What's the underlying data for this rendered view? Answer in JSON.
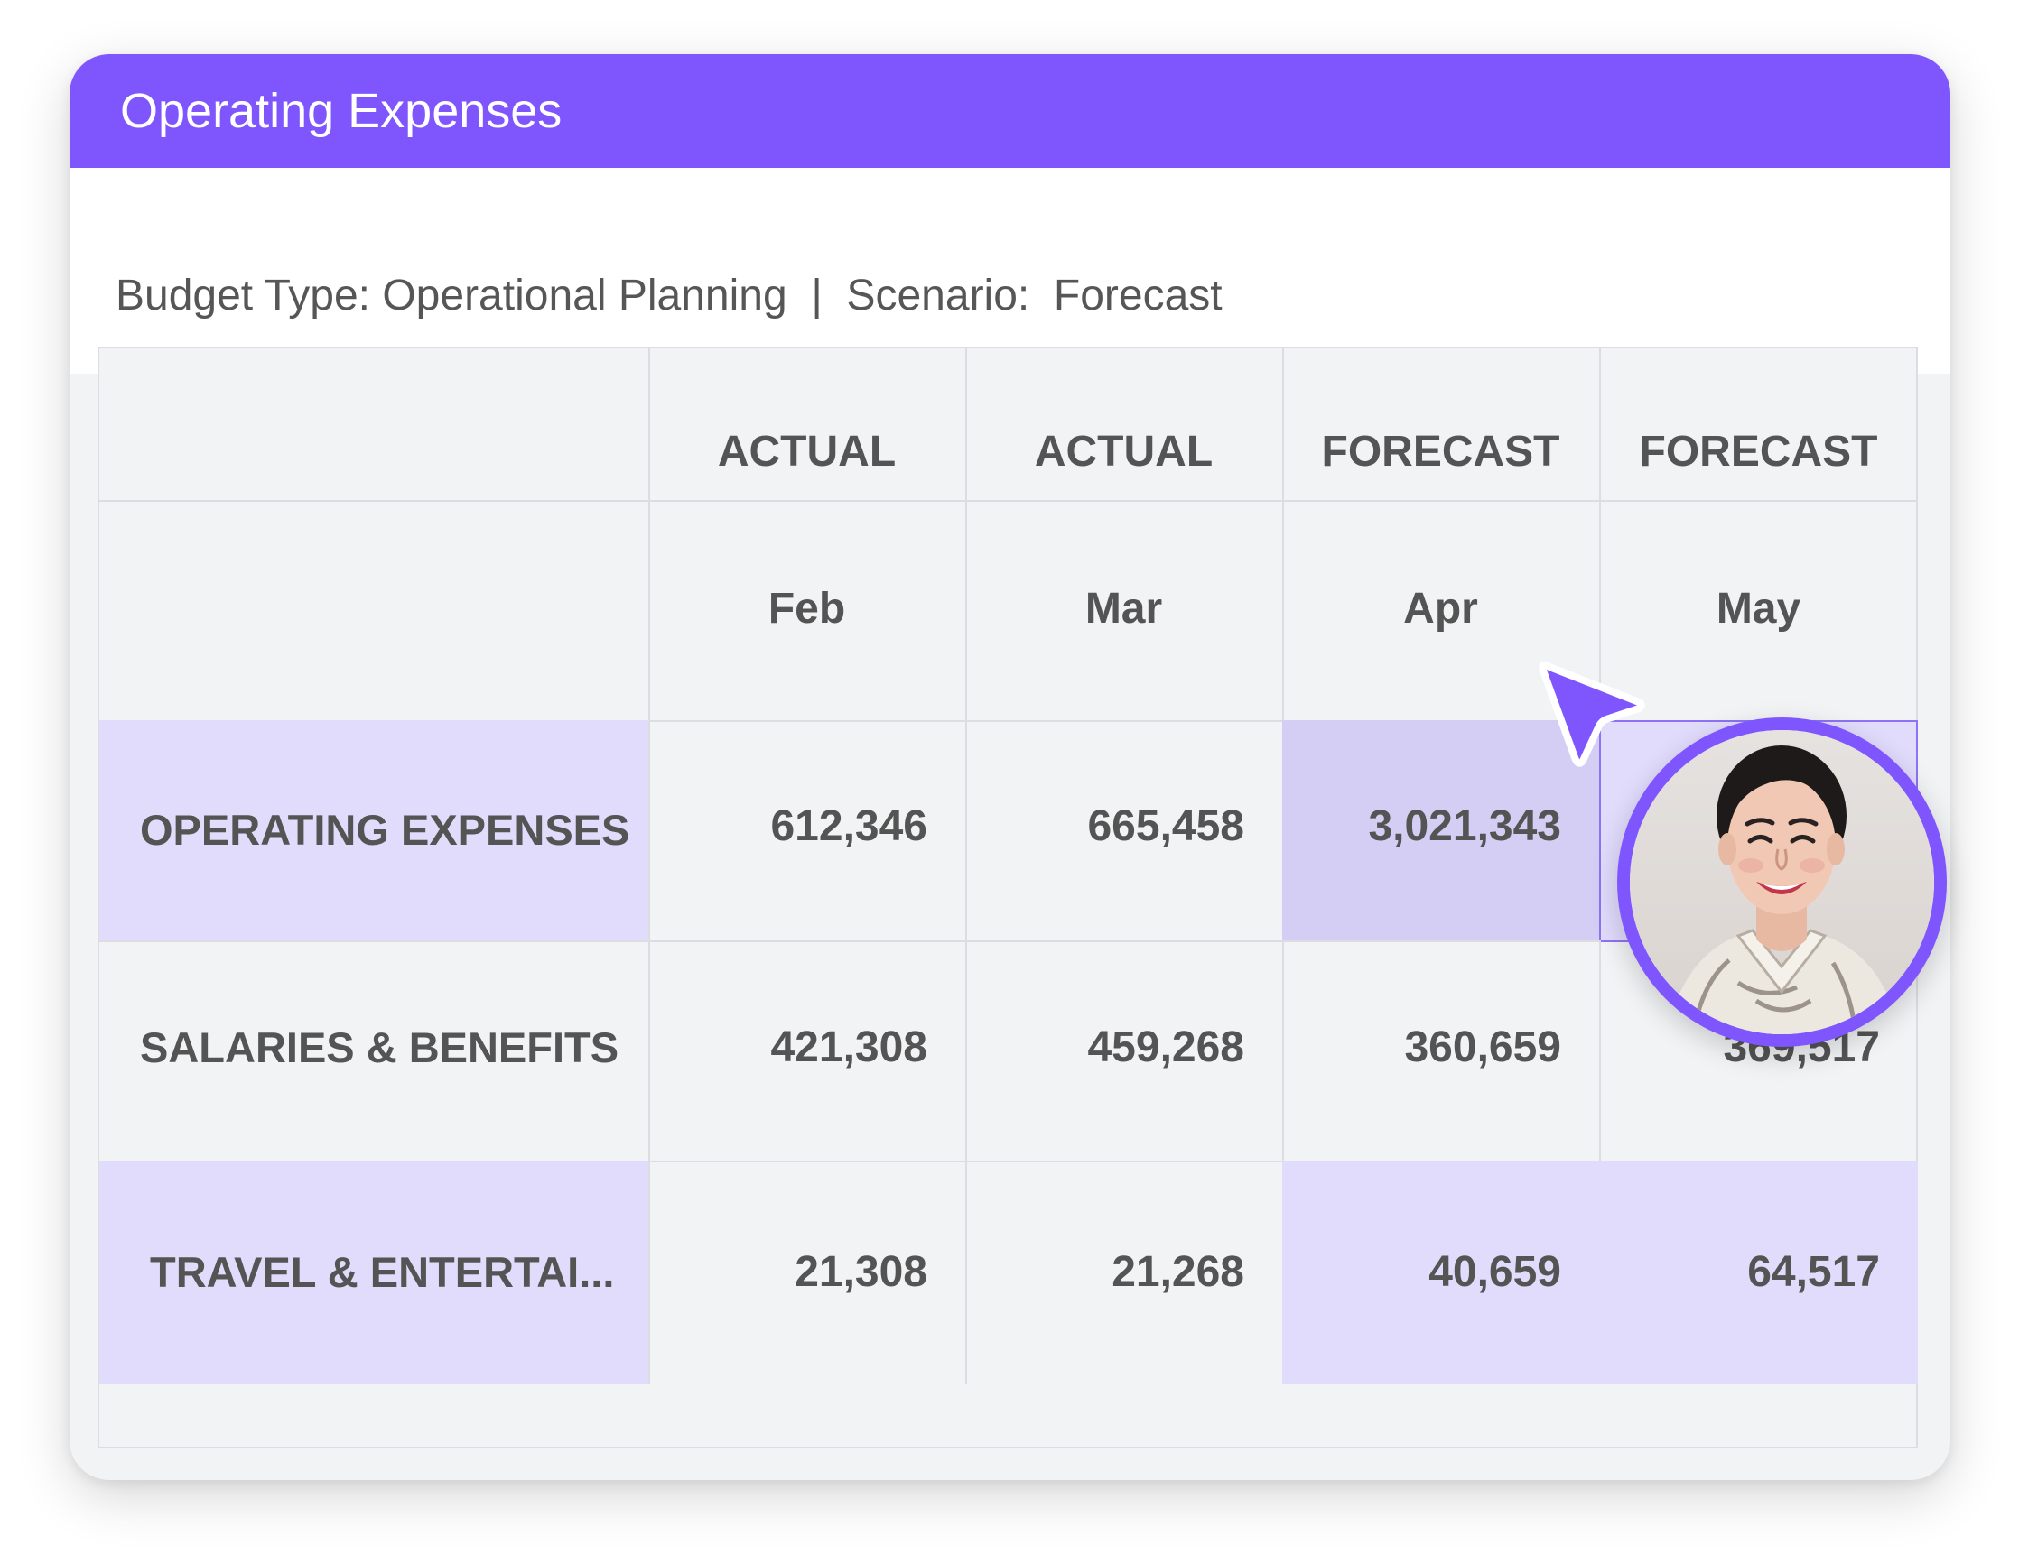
{
  "card": {
    "title": "Operating Expenses",
    "subtitle": "Budget Type: Operational Planning  |  Scenario:  Forecast"
  },
  "table": {
    "type_row": [
      "",
      "ACTUAL",
      "ACTUAL",
      "FORECAST",
      "FORECAST"
    ],
    "month_row": [
      "",
      "Feb",
      "Mar",
      "Apr",
      "May"
    ],
    "rows": [
      {
        "label": "OPERATING EXPENSES",
        "values": [
          "612,346",
          "665,458",
          "3,021,343",
          ""
        ]
      },
      {
        "label": "SALARIES & BENEFITS",
        "values": [
          "421,308",
          "459,268",
          "360,659",
          "369,517"
        ]
      },
      {
        "label": " TRAVEL & ENTERTAI...",
        "values": [
          "21,308",
          "21,268",
          "40,659",
          "64,517"
        ]
      }
    ]
  },
  "colors": {
    "brand": "#7f56fe",
    "highlight_row": "#e1dbfc",
    "selected_cell": "#d4cdf4",
    "text": "#545454"
  },
  "icons": {
    "cursor": "pointer-arrow-icon",
    "avatar": "user-avatar-photo"
  }
}
